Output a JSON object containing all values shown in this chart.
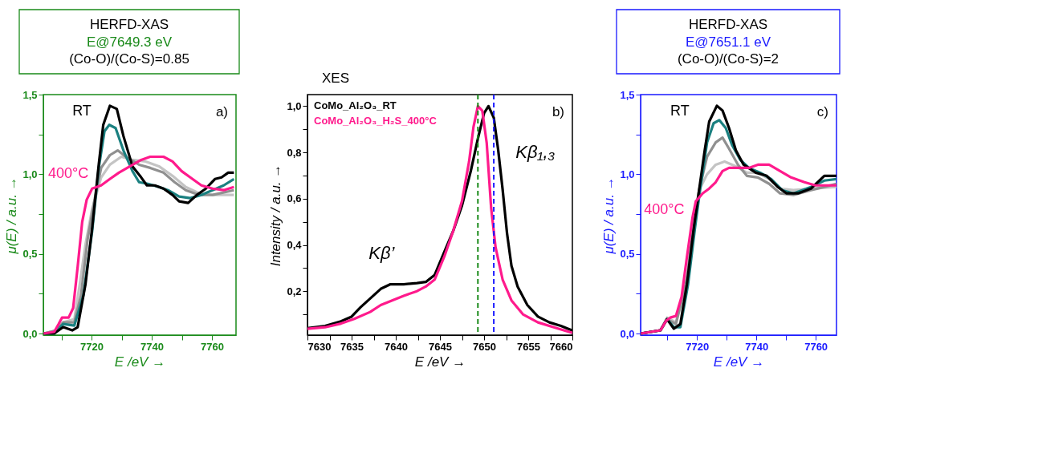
{
  "chart_data": [
    {
      "type": "line",
      "title": "HERFD-XAS",
      "subtitle": "E@7649.3 eV\n(Co-O)/(Co-S)=0.85",
      "xlabel": "E /eV →",
      "ylabel": "μ(E) / a.u. →",
      "xlim": [
        7704,
        7768
      ],
      "ylim": [
        -0.01,
        1.5
      ],
      "xticks": [
        {
          "value": 7710,
          "label": null
        },
        7720,
        {
          "value": 7730,
          "label": null
        },
        7740,
        {
          "value": 7750,
          "label": null
        },
        7760
      ],
      "yticks": [
        {
          "value": 0,
          "label": "0,0"
        },
        {
          "value": 0.25,
          "label": null
        },
        {
          "value": 0.5,
          "label": "0,5"
        },
        {
          "value": 0.75,
          "label": null
        },
        {
          "value": 1.0,
          "label": "1,0"
        },
        {
          "value": 1.25,
          "label": null
        },
        {
          "value": 1.5,
          "label": "1,5"
        }
      ],
      "annotations": [
        "a)"
      ],
      "series": [
        {
          "color": "#c4c4c4",
          "x": [
            7704.1,
            7708.4,
            7710.6,
            7714.3,
            7716.1,
            7718,
            7720.2,
            7723.2,
            7726.1,
            7729.9,
            7733.6,
            7738,
            7742.4,
            7746.9,
            7751.3,
            7755.8,
            7760.2,
            7767.3
          ],
          "values": [
            0,
            0.02,
            0.07,
            0.09,
            0.31,
            0.56,
            0.78,
            0.98,
            1.06,
            1.11,
            1.09,
            1.08,
            1.05,
            0.99,
            0.92,
            0.88,
            0.87,
            0.87
          ]
        },
        {
          "color": "#909090",
          "x": [
            7704.1,
            7708.4,
            7710.6,
            7714.3,
            7716.5,
            7718.7,
            7721,
            7723.2,
            7726.1,
            7728.7,
            7732.1,
            7735.8,
            7739.5,
            7743.9,
            7747.6,
            7751.3,
            7755.8,
            7760.2,
            7767.3
          ],
          "values": [
            0,
            0.02,
            0.07,
            0.07,
            0.24,
            0.59,
            0.84,
            1.04,
            1.12,
            1.15,
            1.1,
            1.06,
            1.04,
            1.01,
            0.95,
            0.9,
            0.87,
            0.87,
            0.9
          ]
        },
        {
          "color": "#1a8080",
          "x": [
            7704.1,
            7707.6,
            7710.6,
            7714.3,
            7717.3,
            7720.2,
            7722.4,
            7724.3,
            7725.9,
            7728,
            7730.6,
            7733.6,
            7735.8,
            7738.7,
            7742.4,
            7745.4,
            7749.1,
            7752.8,
            7756.5,
            7760.2,
            7763.9,
            7767.3
          ],
          "values": [
            0,
            0,
            0.06,
            0.05,
            0.24,
            0.64,
            1.04,
            1.27,
            1.31,
            1.29,
            1.15,
            1.02,
            0.95,
            0.94,
            0.92,
            0.9,
            0.86,
            0.85,
            0.87,
            0.9,
            0.93,
            0.97
          ]
        },
        {
          "name": "RT",
          "color": "#000000",
          "x": [
            7704.1,
            7707.6,
            7710.6,
            7713.6,
            7715.4,
            7718,
            7720.2,
            7722.4,
            7723.9,
            7726.1,
            7728.4,
            7730.6,
            7733.6,
            7736.5,
            7738.4,
            7741,
            7743.9,
            7746.9,
            7749.1,
            7752.1,
            7755,
            7758,
            7761,
            7763.2,
            7765.4,
            7767.3
          ],
          "values": [
            0,
            0,
            0.04,
            0.02,
            0.04,
            0.31,
            0.66,
            1.06,
            1.31,
            1.43,
            1.41,
            1.24,
            1.05,
            0.98,
            0.93,
            0.93,
            0.91,
            0.87,
            0.83,
            0.82,
            0.87,
            0.91,
            0.97,
            0.98,
            1.01,
            1.01
          ]
        },
        {
          "name": "400°C",
          "color": "#ff1a8c",
          "x": [
            7704.1,
            7707.6,
            7709.1,
            7710.2,
            7712.4,
            7713.9,
            7715.4,
            7716.9,
            7718.4,
            7720.2,
            7723.2,
            7726.1,
            7729.1,
            7732.8,
            7736.5,
            7739.5,
            7743.9,
            7746.9,
            7749.9,
            7752.8,
            7756.5,
            7760.2,
            7763.9,
            7767.3
          ],
          "values": [
            0,
            0.01,
            0.06,
            0.1,
            0.1,
            0.16,
            0.42,
            0.7,
            0.84,
            0.91,
            0.93,
            0.97,
            1.01,
            1.05,
            1.09,
            1.11,
            1.11,
            1.08,
            1.02,
            0.98,
            0.93,
            0.91,
            0.9,
            0.92
          ]
        }
      ]
    },
    {
      "type": "line",
      "title": "XES",
      "xlabel": "E /eV →",
      "ylabel": "Intensity  / a.u. →",
      "legend": "top left",
      "xlim": [
        7630,
        7660
      ],
      "ylim": [
        0.01,
        1.05
      ],
      "xticks": [
        7630,
        {
          "value": 7632.5,
          "label": null
        },
        7635,
        {
          "value": 7637.5,
          "label": null
        },
        7640,
        {
          "value": 7642.5,
          "label": null
        },
        7645,
        {
          "value": 7647.5,
          "label": null
        },
        7650,
        {
          "value": 7652.5,
          "label": null
        },
        7655,
        {
          "value": 7657.5,
          "label": null
        },
        7660
      ],
      "yticks": [
        {
          "value": 0.1,
          "label": null
        },
        {
          "value": 0.2,
          "label": "0,2"
        },
        {
          "value": 0.3,
          "label": null
        },
        {
          "value": 0.4,
          "label": "0,4"
        },
        {
          "value": 0.5,
          "label": null
        },
        {
          "value": 0.6,
          "label": "0,6"
        },
        {
          "value": 0.7,
          "label": null
        },
        {
          "value": 0.8,
          "label": "0,8"
        },
        {
          "value": 0.9,
          "label": null
        },
        {
          "value": 1.0,
          "label": "1,0"
        }
      ],
      "annotations": [
        "b)",
        "Kβ’",
        "Kβ₁,₃"
      ],
      "ref_lines": [
        {
          "axis": "x",
          "value": 7649.3,
          "color": "#1a8a1a",
          "line_style": "dashed"
        },
        {
          "axis": "x",
          "value": 7651.1,
          "color": "#1a1aff",
          "line_style": "dashed"
        }
      ],
      "series": [
        {
          "name": "CoMo_Al₂O₃_RT",
          "color": "#000000",
          "x": [
            7630,
            7632,
            7633.8,
            7635,
            7636,
            7637.3,
            7638.3,
            7639.4,
            7640.9,
            7642.4,
            7643.4,
            7644.4,
            7645.5,
            7646.5,
            7647.5,
            7648.5,
            7649.3,
            7650,
            7650.5,
            7651.1,
            7651.6,
            7652.1,
            7652.6,
            7653.1,
            7653.8,
            7654.9,
            7656.1,
            7657.4,
            7658.7,
            7660
          ],
          "values": [
            0.04,
            0.05,
            0.07,
            0.09,
            0.13,
            0.175,
            0.21,
            0.23,
            0.23,
            0.235,
            0.24,
            0.27,
            0.37,
            0.46,
            0.57,
            0.72,
            0.86,
            0.97,
            1.0,
            0.95,
            0.81,
            0.64,
            0.45,
            0.31,
            0.22,
            0.14,
            0.09,
            0.065,
            0.05,
            0.03
          ]
        },
        {
          "name": "CoMo_Al₂O₃_H₂S_400°C",
          "color": "#ff1a8c",
          "x": [
            7630,
            7632,
            7633.8,
            7635.3,
            7637.1,
            7638.3,
            7639.6,
            7640.9,
            7642.4,
            7643.4,
            7644.4,
            7645.5,
            7646.5,
            7647.5,
            7648.3,
            7648.8,
            7649.3,
            7649.8,
            7650.3,
            7650.8,
            7651.3,
            7652.1,
            7653.1,
            7654.4,
            7656.1,
            7658.2,
            7660
          ],
          "values": [
            0.037,
            0.044,
            0.06,
            0.08,
            0.11,
            0.14,
            0.16,
            0.18,
            0.2,
            0.22,
            0.25,
            0.35,
            0.46,
            0.59,
            0.76,
            0.91,
            1.0,
            0.98,
            0.84,
            0.56,
            0.39,
            0.25,
            0.16,
            0.1,
            0.065,
            0.04,
            0.02
          ]
        }
      ]
    },
    {
      "type": "line",
      "title": "HERFD-XAS",
      "subtitle": "E@7651.1 eV\n(Co-O)/(Co-S)=2",
      "xlabel": "E /eV →",
      "ylabel": "μ(E) / a.u. →",
      "xlim": [
        7701,
        7767
      ],
      "ylim": [
        -0.01,
        1.5
      ],
      "xticks": [
        {
          "value": 7710,
          "label": null
        },
        7720,
        {
          "value": 7730,
          "label": null
        },
        7740,
        {
          "value": 7750,
          "label": null
        },
        7760
      ],
      "yticks": [
        {
          "value": 0,
          "label": "0,0"
        },
        {
          "value": 0.25,
          "label": null
        },
        {
          "value": 0.5,
          "label": "0,5"
        },
        {
          "value": 0.75,
          "label": null
        },
        {
          "value": 1.0,
          "label": "1,0"
        },
        {
          "value": 1.25,
          "label": null
        },
        {
          "value": 1.5,
          "label": "1,5"
        }
      ],
      "annotations": [
        "c)"
      ],
      "series": [
        {
          "color": "#c4c4c4",
          "x": [
            7701.1,
            7707.7,
            7709.9,
            7712.9,
            7716.6,
            7718.9,
            7720.7,
            7723.4,
            7726.3,
            7729.3,
            7733.1,
            7736.8,
            7740.5,
            7744.3,
            7748,
            7752.5,
            7758.4,
            7767
          ],
          "values": [
            0,
            0.02,
            0.1,
            0.07,
            0.35,
            0.69,
            0.9,
            1.0,
            1.06,
            1.08,
            1.05,
            1.01,
            1.01,
            0.97,
            0.91,
            0.9,
            0.91,
            0.92
          ]
        },
        {
          "color": "#909090",
          "x": [
            7701.1,
            7707.7,
            7709.9,
            7712.9,
            7716.6,
            7718.9,
            7720.7,
            7723.4,
            7726.3,
            7728.6,
            7730.8,
            7733.8,
            7736.8,
            7740.5,
            7744.3,
            7748,
            7752.5,
            7758.4,
            7767
          ],
          "values": [
            0,
            0.02,
            0.09,
            0.06,
            0.34,
            0.68,
            0.9,
            1.11,
            1.2,
            1.23,
            1.16,
            1.06,
            0.99,
            0.98,
            0.94,
            0.88,
            0.87,
            0.9,
            0.94
          ]
        },
        {
          "color": "#1a8080",
          "x": [
            7701.1,
            7707.7,
            7709.9,
            7712.2,
            7714.4,
            7717,
            7719.3,
            7721.1,
            7723.4,
            7725.6,
            7727.5,
            7729.7,
            7731.9,
            7734.6,
            7737.5,
            7741.3,
            7745,
            7748.7,
            7752.5,
            7758.4,
            7762.9,
            7767
          ],
          "values": [
            0,
            0.02,
            0.09,
            0.04,
            0.04,
            0.31,
            0.66,
            0.91,
            1.2,
            1.32,
            1.34,
            1.29,
            1.18,
            1.09,
            1.04,
            1.01,
            0.97,
            0.9,
            0.88,
            0.92,
            0.96,
            0.97
          ]
        },
        {
          "name": "RT",
          "color": "#000000",
          "x": [
            7701.1,
            7707.7,
            7709.9,
            7712.2,
            7714.4,
            7716.6,
            7718.9,
            7720.7,
            7722.6,
            7724.1,
            7726.7,
            7728.6,
            7730.8,
            7733.1,
            7735.7,
            7739.8,
            7743.5,
            7747.2,
            7750.2,
            7754,
            7758.4,
            7762.9,
            7767
          ],
          "values": [
            0,
            0.02,
            0.09,
            0.03,
            0.06,
            0.31,
            0.66,
            0.9,
            1.15,
            1.33,
            1.43,
            1.4,
            1.29,
            1.15,
            1.06,
            1.01,
            0.99,
            0.92,
            0.88,
            0.88,
            0.91,
            0.99,
            0.99
          ]
        },
        {
          "name": "400°C",
          "color": "#ff1a8c",
          "x": [
            7701.1,
            7707.7,
            7709.6,
            7711,
            7712.9,
            7714.8,
            7716.6,
            7718.5,
            7719.6,
            7721.9,
            7724.1,
            7726.3,
            7728.6,
            7730.8,
            7734.6,
            7737.5,
            7740.5,
            7744.3,
            7748,
            7751.7,
            7756.2,
            7759.9,
            7767
          ],
          "values": [
            0,
            0.02,
            0.08,
            0.1,
            0.11,
            0.23,
            0.48,
            0.73,
            0.83,
            0.88,
            0.91,
            0.95,
            1.02,
            1.04,
            1.04,
            1.04,
            1.06,
            1.06,
            1.02,
            0.98,
            0.95,
            0.93,
            0.93
          ]
        }
      ]
    }
  ]
}
